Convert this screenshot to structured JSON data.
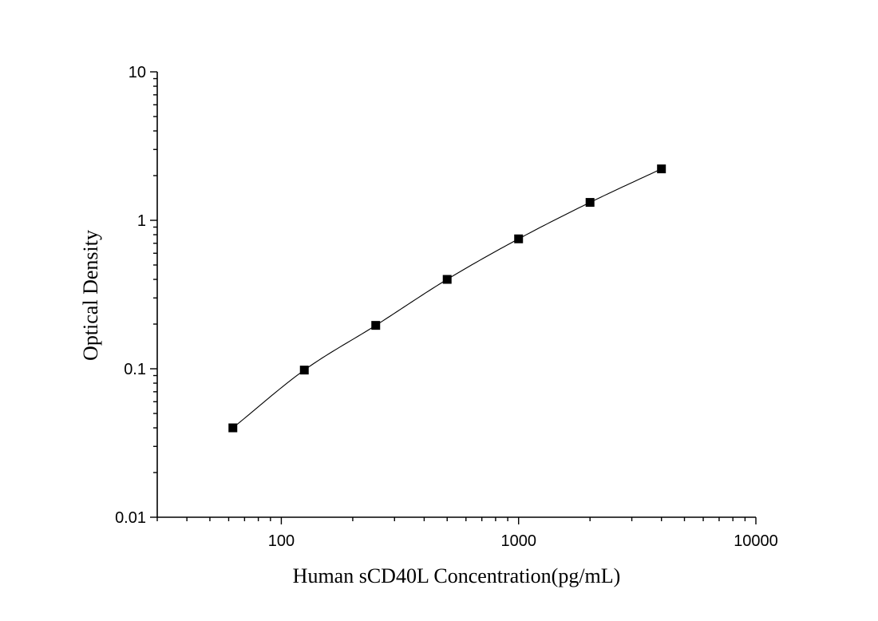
{
  "chart_data": {
    "type": "scatter",
    "x_scale": "log",
    "y_scale": "log",
    "xlabel": "Human sCD40L Concentration(pg/mL)",
    "ylabel": "Optical Density",
    "xlim": [
      30,
      10000
    ],
    "ylim": [
      0.01,
      10
    ],
    "x_ticks": [
      100,
      1000,
      10000
    ],
    "x_tick_labels": [
      "100",
      "1000",
      "10000"
    ],
    "y_ticks": [
      0.01,
      0.1,
      1,
      10
    ],
    "y_tick_labels": [
      "0.01",
      "0.1",
      "1",
      "10"
    ],
    "grid": false,
    "legend": false,
    "marker": "square",
    "fit_curve": true,
    "series": [
      {
        "x": [
          62.5,
          125,
          250,
          500,
          1000,
          2000,
          4000
        ],
        "y": [
          0.04,
          0.098,
          0.196,
          0.4,
          0.75,
          1.32,
          2.22
        ]
      }
    ],
    "colors": {
      "marker": "#000000",
      "curve": "#000000",
      "axis": "#000000"
    }
  }
}
